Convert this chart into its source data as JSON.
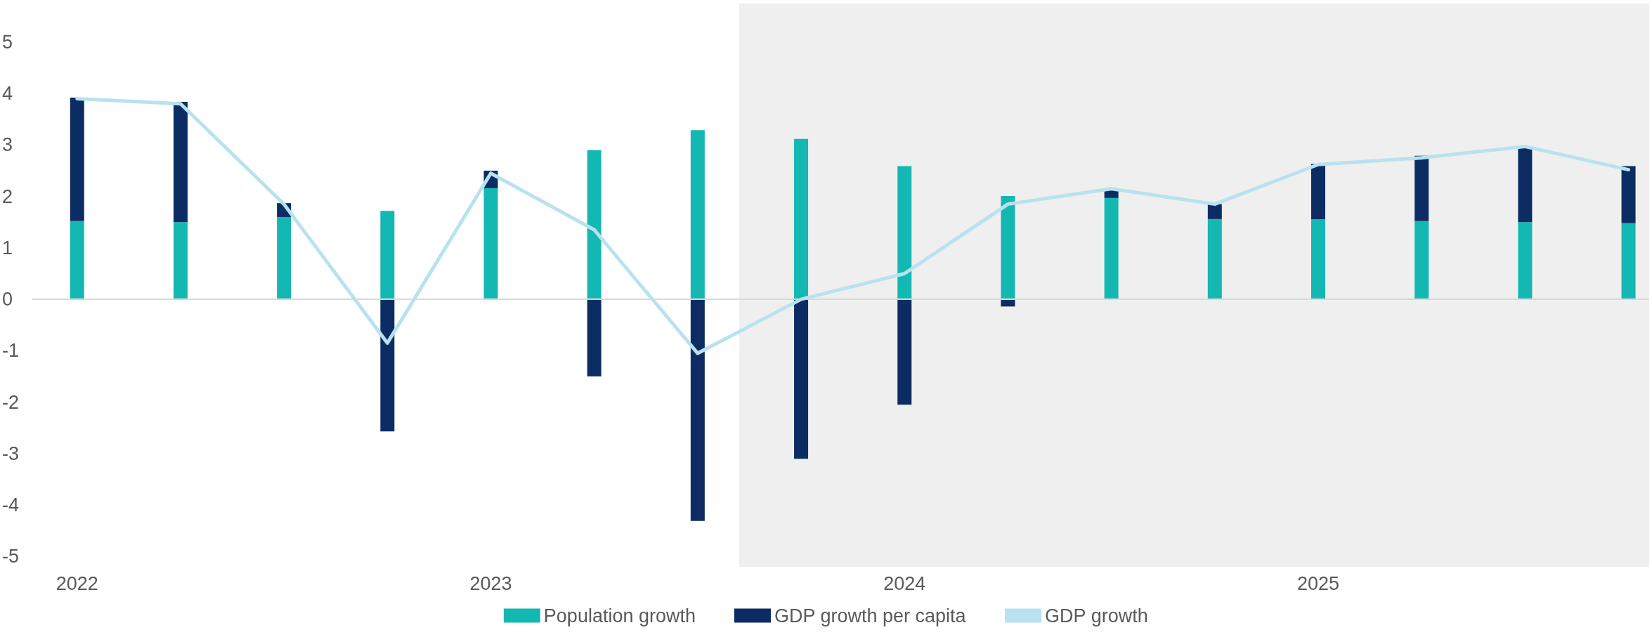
{
  "chart_data": {
    "type": "bar",
    "stacked": true,
    "x": [
      2022,
      2022.25,
      2022.5,
      2022.75,
      2023,
      2023.25,
      2023.5,
      2023.75,
      2024,
      2024.25,
      2024.5,
      2024.75,
      2025,
      2025.25,
      2025.5,
      2025.75
    ],
    "series": [
      {
        "name": "Population growth",
        "color": "#14b8b2",
        "values": [
          1.52,
          1.5,
          1.6,
          1.72,
          2.16,
          2.9,
          3.29,
          3.12,
          2.59,
          2.01,
          1.97,
          1.56,
          1.56,
          1.52,
          1.5,
          1.48
        ]
      },
      {
        "name": "GDP growth per capita",
        "color": "#0c2d63",
        "values": [
          2.4,
          2.34,
          0.27,
          -2.57,
          0.34,
          -1.5,
          -4.31,
          -3.1,
          -2.05,
          -0.14,
          0.17,
          0.29,
          1.07,
          1.27,
          1.46,
          1.11
        ]
      },
      {
        "name": "GDP growth",
        "type": "line",
        "color": "#b8e2f0",
        "values": [
          3.9,
          3.8,
          1.85,
          -0.85,
          2.45,
          1.35,
          -1.05,
          0.0,
          0.5,
          1.85,
          2.15,
          1.85,
          2.62,
          2.75,
          2.97,
          2.52
        ]
      }
    ],
    "xlim": [
      2021.89,
      2025.8
    ],
    "xticks": [
      2022,
      2023,
      2024,
      2025
    ],
    "ylim": [
      -5.2,
      5.75
    ],
    "yticks": [
      -5,
      -4,
      -3,
      -2,
      -1,
      0,
      1,
      2,
      3,
      4,
      5
    ],
    "ref_lines": [
      {
        "axis": "y",
        "value": 0,
        "color": "#d9d9d9"
      }
    ],
    "bands": [
      {
        "axis": "x",
        "from": 2023.6,
        "to": 2025.8,
        "color": "#efefef"
      }
    ],
    "grid": false,
    "legend": "bottom",
    "marker": "none",
    "line_style": "solid"
  }
}
